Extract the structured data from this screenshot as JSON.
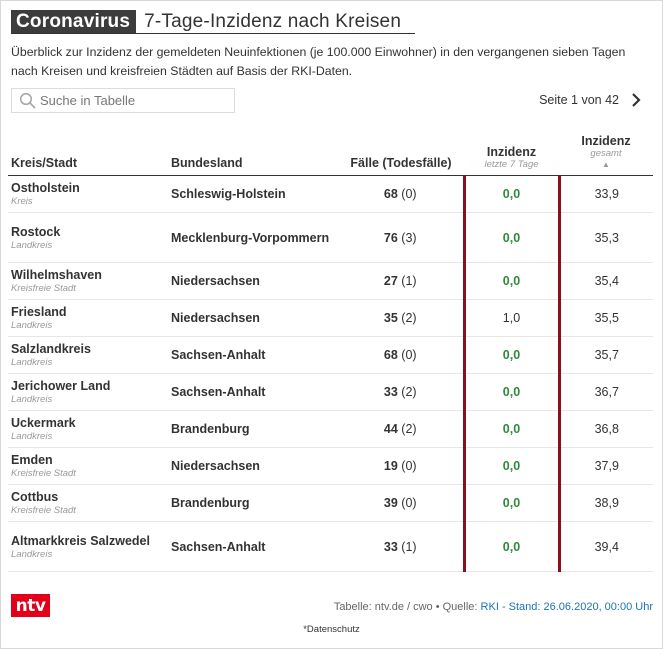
{
  "header": {
    "kicker": "Coronavirus",
    "title": "7-Tage-Inzidenz nach Kreisen"
  },
  "intro": "Überblick zur Inzidenz der gemeldeten Neuinfektionen (je 100.000 Einwohner) in den vergangenen sieben Tagen nach Kreisen und kreisfreien Städten auf Basis der RKI-Daten.",
  "search": {
    "placeholder": "Suche in Tabelle"
  },
  "pager": {
    "label": "Seite 1 von 42"
  },
  "table": {
    "headers": {
      "kreis": "Kreis/Stadt",
      "land": "Bundesland",
      "faelle": "Fälle (Todesfälle)",
      "inz7": "Inzidenz",
      "inz7_sub": "letzte 7 Tage",
      "inzg": "Inzidenz",
      "inzg_sub": "gesamt",
      "sort_icon": "▲"
    },
    "rows": [
      {
        "name": "Ostholstein",
        "type": "Kreis",
        "land": "Schleswig-Holstein",
        "cases": "68",
        "deaths": "(0)",
        "inz7": "0,0",
        "inzg": "33,9"
      },
      {
        "name": "Rostock",
        "type": "Landkreis",
        "land": "Mecklenburg-Vorpommern",
        "cases": "76",
        "deaths": "(3)",
        "inz7": "0,0",
        "inzg": "35,3"
      },
      {
        "name": "Wilhelmshaven",
        "type": "Kreisfreie Stadt",
        "land": "Niedersachsen",
        "cases": "27",
        "deaths": "(1)",
        "inz7": "0,0",
        "inzg": "35,4"
      },
      {
        "name": "Friesland",
        "type": "Landkreis",
        "land": "Niedersachsen",
        "cases": "35",
        "deaths": "(2)",
        "inz7": "1,0",
        "inzg": "35,5"
      },
      {
        "name": "Salzlandkreis",
        "type": "Landkreis",
        "land": "Sachsen-Anhalt",
        "cases": "68",
        "deaths": "(0)",
        "inz7": "0,0",
        "inzg": "35,7"
      },
      {
        "name": "Jerichower Land",
        "type": "Landkreis",
        "land": "Sachsen-Anhalt",
        "cases": "33",
        "deaths": "(2)",
        "inz7": "0,0",
        "inzg": "36,7"
      },
      {
        "name": "Uckermark",
        "type": "Landkreis",
        "land": "Brandenburg",
        "cases": "44",
        "deaths": "(2)",
        "inz7": "0,0",
        "inzg": "36,8"
      },
      {
        "name": "Emden",
        "type": "Kreisfreie Stadt",
        "land": "Niedersachsen",
        "cases": "19",
        "deaths": "(0)",
        "inz7": "0,0",
        "inzg": "37,9"
      },
      {
        "name": "Cottbus",
        "type": "Kreisfreie Stadt",
        "land": "Brandenburg",
        "cases": "39",
        "deaths": "(0)",
        "inz7": "0,0",
        "inzg": "38,9"
      },
      {
        "name": "Altmarkkreis Salzwedel",
        "type": "Landkreis",
        "land": "Sachsen-Anhalt",
        "cases": "33",
        "deaths": "(1)",
        "inz7": "0,0",
        "inzg": "39,4"
      }
    ]
  },
  "footer": {
    "logo_text": "ntv",
    "source_prefix": "Tabelle: ntv.de / cwo • Quelle: ",
    "source_link": "RKI - Stand: 26.06.2020, 00:00 Uhr",
    "privacy": "*Datenschutz"
  },
  "colors": {
    "accent_red": "#8b0f1a",
    "brand_red": "#e2001a",
    "green": "#2e8b3a",
    "link": "#1a73b8"
  }
}
